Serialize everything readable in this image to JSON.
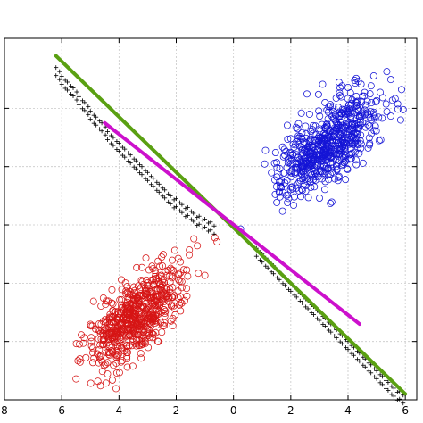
{
  "chart_data": {
    "type": "scatter",
    "xlim": [
      -8,
      6.4
    ],
    "ylim": [
      -6,
      6.4
    ],
    "grid": true,
    "x_ticks": [
      -8,
      -6,
      -4,
      -2,
      0,
      2,
      4,
      6
    ],
    "x_tick_labels": [
      "8",
      "6",
      "4",
      "2",
      "0",
      "2",
      "4",
      "6"
    ],
    "y_ticks": [
      -4,
      -2,
      0,
      2,
      4
    ],
    "series": [
      {
        "kind": "scatter",
        "marker": "circle",
        "color": "#1515d6",
        "center": [
          3.3,
          2.8
        ],
        "spread": [
          0.85,
          0.55
        ],
        "correlation": 0.65,
        "count": 650,
        "seed": 7
      },
      {
        "kind": "scatter",
        "marker": "circle",
        "color": "#d61515",
        "center": [
          -3.4,
          -3.1
        ],
        "spread": [
          0.85,
          0.55
        ],
        "correlation": 0.65,
        "count": 650,
        "seed": 19
      },
      {
        "kind": "line",
        "color": "#5aa012",
        "x": [
          -6.2,
          6.0
        ],
        "y": [
          5.8,
          -5.8
        ]
      },
      {
        "kind": "line",
        "color": "#cc10cc",
        "x": [
          -4.5,
          4.4
        ],
        "y": [
          3.5,
          -3.4
        ]
      },
      {
        "kind": "scatter",
        "marker": "plus",
        "color": "#000000",
        "x": [
          -6.2,
          -6.0,
          -5.8,
          -5.6,
          -5.4,
          -5.2,
          -5.0,
          -4.8,
          -4.6,
          -4.4,
          -4.2,
          -4.0,
          -3.8,
          -3.6,
          -3.4,
          -3.2,
          -3.0,
          -2.8,
          -2.6,
          -2.4,
          -2.2,
          -2.0,
          -1.8,
          -1.6,
          -1.4,
          -1.2,
          -1.0,
          -0.8,
          0.8,
          1.0,
          1.2,
          1.4,
          1.6,
          1.8,
          2.0,
          2.2,
          2.4,
          2.6,
          2.8,
          3.0,
          3.2,
          3.4,
          3.6,
          3.8,
          4.0,
          4.2,
          4.4,
          4.6,
          4.8,
          5.0,
          5.2,
          5.4,
          5.6,
          5.8
        ],
        "y": [
          5.4,
          5.1,
          4.9,
          4.7,
          4.4,
          4.2,
          3.9,
          3.7,
          3.5,
          3.2,
          3.0,
          2.8,
          2.6,
          2.4,
          2.2,
          2.0,
          1.8,
          1.6,
          1.4,
          1.2,
          1.0,
          0.9,
          0.7,
          0.6,
          0.4,
          0.3,
          0.2,
          0.1,
          -0.8,
          -1.0,
          -1.2,
          -1.4,
          -1.6,
          -1.8,
          -2.0,
          -2.2,
          -2.4,
          -2.6,
          -2.8,
          -3.0,
          -3.2,
          -3.4,
          -3.6,
          -3.8,
          -4.0,
          -4.2,
          -4.4,
          -4.6,
          -4.8,
          -5.0,
          -5.2,
          -5.4,
          -5.6,
          -5.7
        ]
      }
    ]
  }
}
